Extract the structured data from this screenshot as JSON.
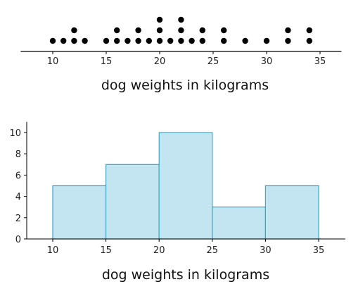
{
  "chart_data": [
    {
      "type": "scatter",
      "subtype": "dot-plot",
      "xlabel": "dog weights in kilograms",
      "xlim": [
        7,
        37
      ],
      "x_ticks": [
        10,
        15,
        20,
        25,
        30,
        35
      ],
      "dot_color": "#000000",
      "dots": [
        {
          "x": 10,
          "count": 1
        },
        {
          "x": 11,
          "count": 1
        },
        {
          "x": 12,
          "count": 2
        },
        {
          "x": 13,
          "count": 1
        },
        {
          "x": 15,
          "count": 1
        },
        {
          "x": 16,
          "count": 2
        },
        {
          "x": 17,
          "count": 1
        },
        {
          "x": 18,
          "count": 2
        },
        {
          "x": 19,
          "count": 1
        },
        {
          "x": 20,
          "count": 3
        },
        {
          "x": 21,
          "count": 1
        },
        {
          "x": 22,
          "count": 3
        },
        {
          "x": 23,
          "count": 1
        },
        {
          "x": 24,
          "count": 2
        },
        {
          "x": 26,
          "count": 2
        },
        {
          "x": 28,
          "count": 1
        },
        {
          "x": 30,
          "count": 1
        },
        {
          "x": 32,
          "count": 2
        },
        {
          "x": 34,
          "count": 2
        }
      ]
    },
    {
      "type": "bar",
      "subtype": "histogram",
      "xlabel": "dog weights in kilograms",
      "xlim": [
        7,
        37
      ],
      "ylim": [
        0,
        11
      ],
      "x_ticks": [
        10,
        15,
        20,
        25,
        30,
        35
      ],
      "y_ticks": [
        0,
        2,
        4,
        6,
        8,
        10
      ],
      "bar_fill": "#c3e4f1",
      "bar_stroke": "#3aa7cc",
      "bins": [
        {
          "from": 10,
          "to": 15,
          "value": 5
        },
        {
          "from": 15,
          "to": 20,
          "value": 7
        },
        {
          "from": 20,
          "to": 25,
          "value": 10
        },
        {
          "from": 25,
          "to": 30,
          "value": 3
        },
        {
          "from": 30,
          "to": 35,
          "value": 5
        }
      ]
    }
  ]
}
